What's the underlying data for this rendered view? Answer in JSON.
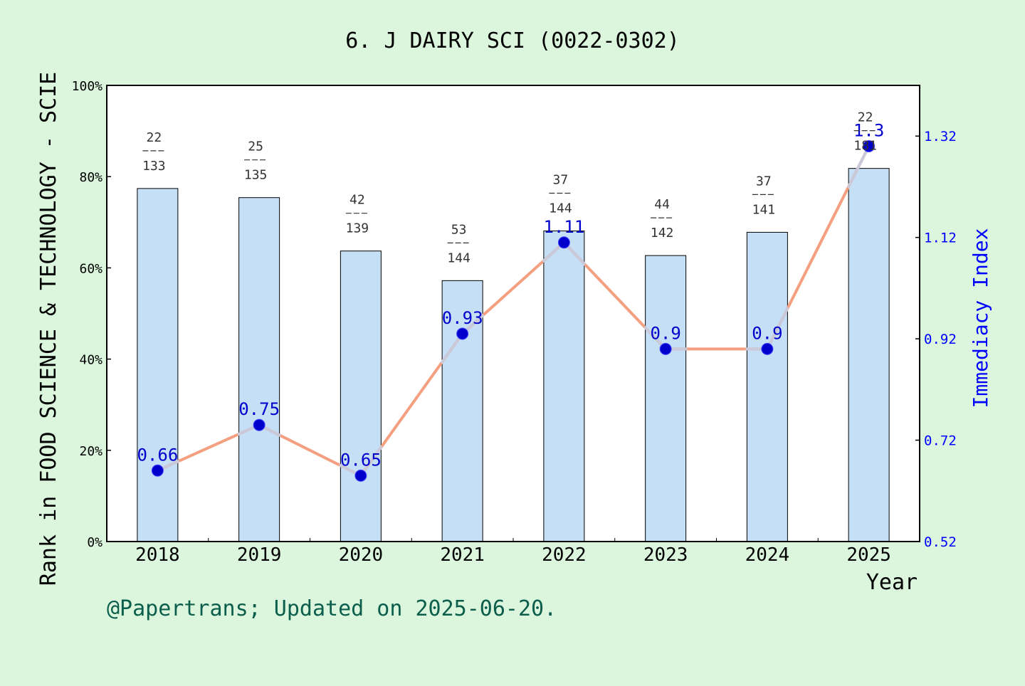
{
  "chart_data": {
    "type": "bar+line",
    "title": "6. J DAIRY SCI (0022-0302)",
    "xlabel": "Year",
    "ylabel_left": "Rank in FOOD SCIENCE & TECHNOLOGY - SCIE",
    "ylabel_right": "Immediacy Index",
    "footer": "@Papertrans; Updated on 2025-06-20.",
    "categories": [
      "2018",
      "2019",
      "2020",
      "2021",
      "2022",
      "2023",
      "2024",
      "2025"
    ],
    "left_axis": {
      "ylim": [
        0,
        100
      ],
      "ticks": [
        "0%",
        "20%",
        "40%",
        "60%",
        "80%",
        "100%"
      ]
    },
    "right_axis": {
      "ylim": [
        0.52,
        1.42
      ],
      "ticks": [
        "0.52",
        "0.72",
        "0.92",
        "1.12",
        "1.32"
      ]
    },
    "bars": {
      "values_percent": [
        77.4,
        75.4,
        63.7,
        57.2,
        68.1,
        62.7,
        67.8,
        81.8
      ],
      "rank": [
        "22",
        "25",
        "42",
        "53",
        "37",
        "44",
        "37",
        "22"
      ],
      "total": [
        "133",
        "135",
        "139",
        "144",
        "144",
        "142",
        "141",
        "181"
      ],
      "color": "#c5dff6"
    },
    "line": {
      "name": "Immediacy Index",
      "values": [
        0.66,
        0.75,
        0.65,
        0.93,
        1.11,
        0.9,
        0.9,
        1.3
      ],
      "labels": [
        "0.66",
        "0.75",
        "0.65",
        "0.93",
        "1.11",
        "0.9",
        "0.9",
        "1.3"
      ],
      "color": "#f4a080",
      "marker_color": "#0000cc"
    },
    "grid": false,
    "colors": {
      "background": "#dbf6dd",
      "plot_background": "#ffffff",
      "right_axis": "#0000ff",
      "footer_text": "#0b5e4c"
    }
  }
}
